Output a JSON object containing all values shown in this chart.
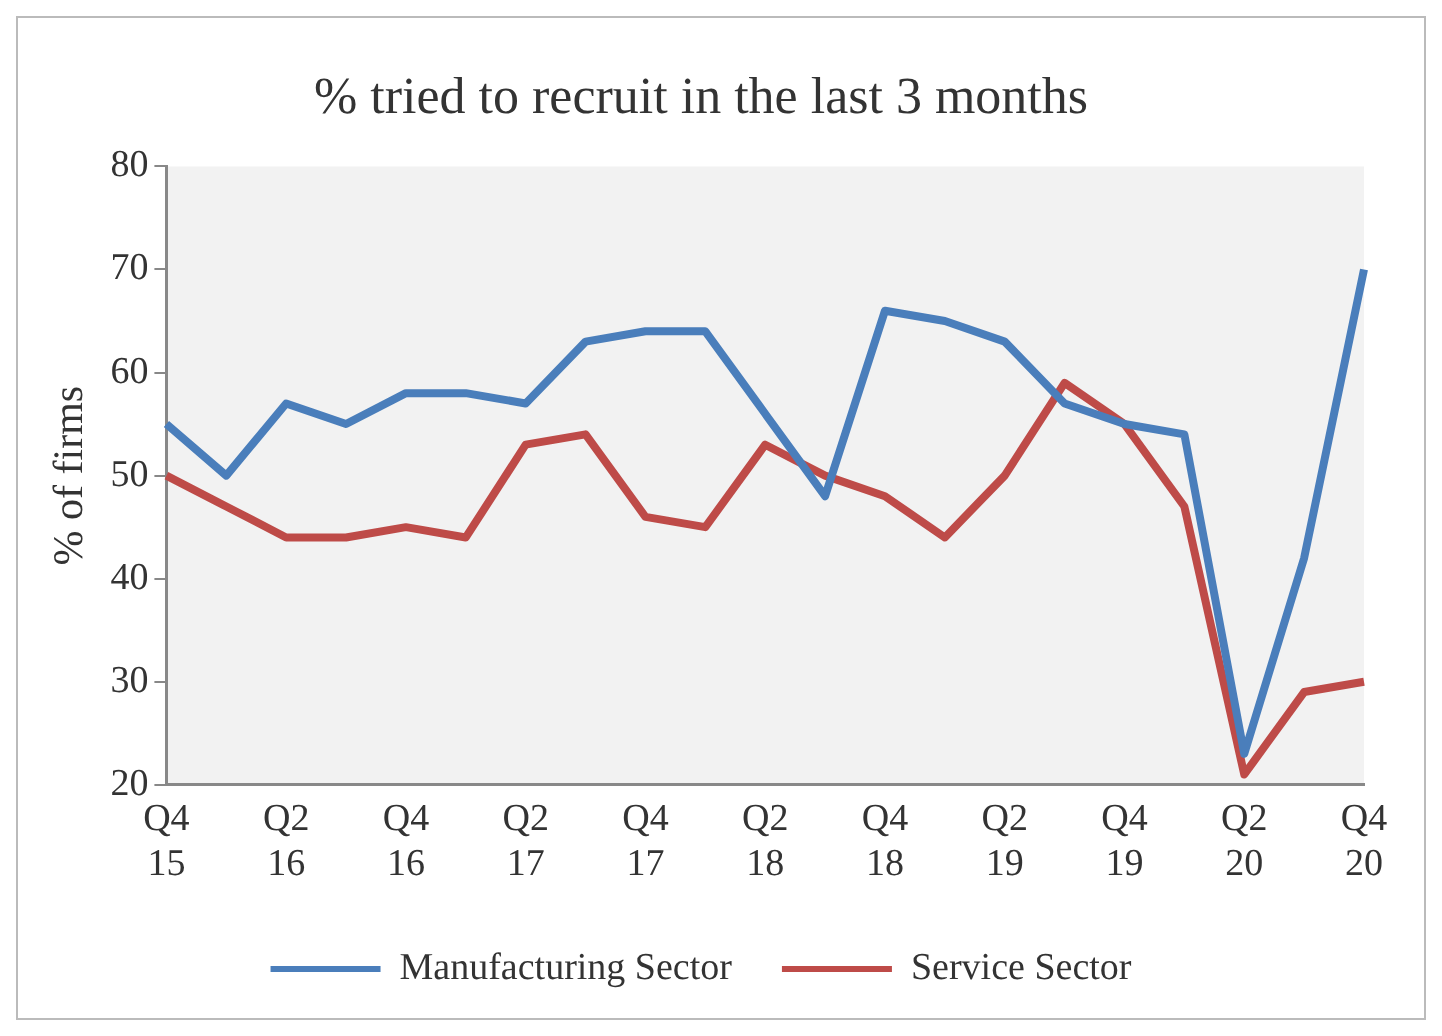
{
  "chart_data": {
    "type": "line",
    "title": "% tried to recruit in the last 3 months",
    "ylabel": "% of firms",
    "categories": [
      "Q4 15",
      null,
      "Q2 16",
      null,
      "Q4 16",
      null,
      "Q2 17",
      null,
      "Q4 17",
      null,
      "Q2 18",
      null,
      "Q4 18",
      null,
      "Q2 19",
      null,
      "Q4 19",
      null,
      "Q2 20",
      null,
      "Q4 20"
    ],
    "series": [
      {
        "name": "Manufacturing Sector",
        "color": "#4a7ebb",
        "values": [
          55,
          50,
          57,
          55,
          58,
          58,
          57,
          63,
          64,
          64,
          56,
          48,
          66,
          65,
          63,
          57,
          55,
          54,
          23,
          42,
          70
        ]
      },
      {
        "name": "Service Sector",
        "color": "#be4b48",
        "values": [
          50,
          47,
          44,
          44,
          45,
          44,
          53,
          54,
          46,
          45,
          53,
          50,
          48,
          44,
          50,
          59,
          55,
          47,
          21,
          29,
          30
        ]
      }
    ],
    "ylim": [
      20,
      80
    ],
    "yticks": [
      20,
      30,
      40,
      50,
      60,
      70,
      80
    ],
    "grid": false,
    "legend": "bottom",
    "marker": "none",
    "line_style": "solid"
  }
}
